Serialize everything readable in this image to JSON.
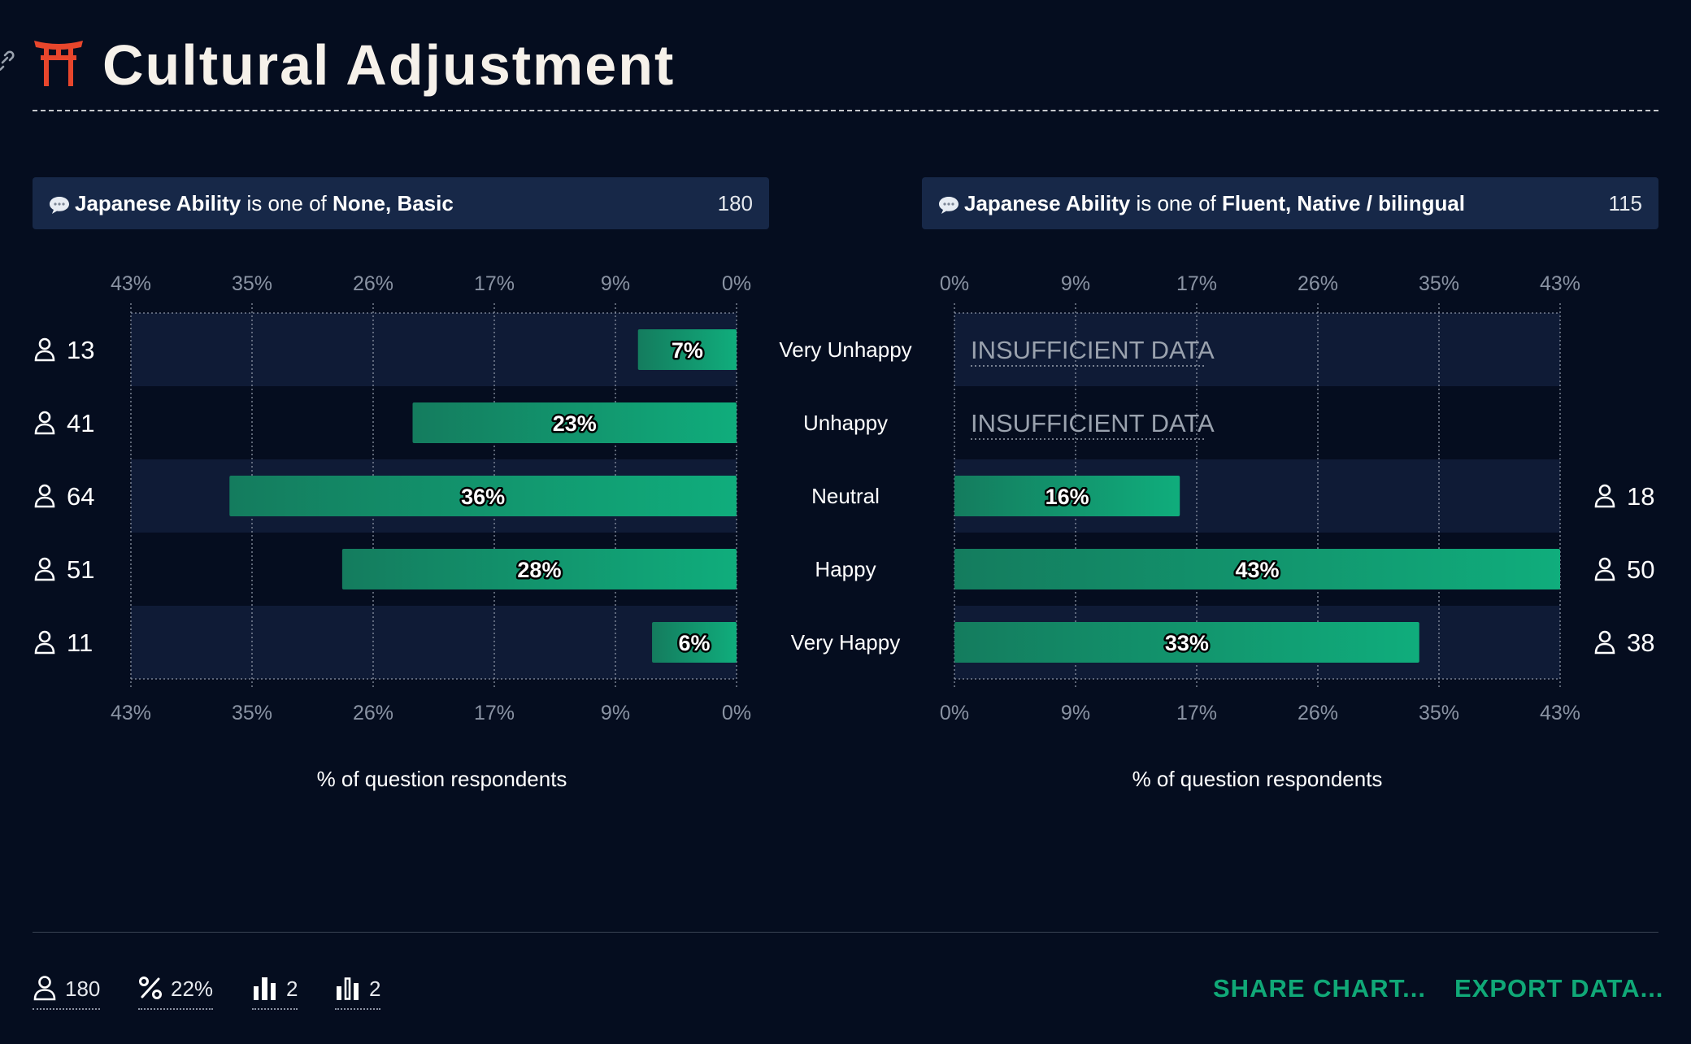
{
  "header": {
    "title": "Cultural Adjustment",
    "title_icon": "torii-gate-icon",
    "link_icon": "link-icon"
  },
  "panels": [
    {
      "filter_field": "Japanese Ability",
      "filter_op": "is one of",
      "filter_values": "None, Basic",
      "count": "180",
      "icon": "speech-bubble-icon"
    },
    {
      "filter_field": "Japanese Ability",
      "filter_op": "is one of",
      "filter_values": "Fluent, Native / bilingual",
      "count": "115",
      "icon": "speech-bubble-icon"
    }
  ],
  "chart_data": [
    {
      "type": "bar",
      "orientation": "horizontal",
      "direction": "right-to-left",
      "categories": [
        "Very Unhappy",
        "Unhappy",
        "Neutral",
        "Happy",
        "Very Happy"
      ],
      "values": [
        7,
        23,
        36,
        28,
        6
      ],
      "value_labels": [
        "7%",
        "23%",
        "36%",
        "28%",
        "6%"
      ],
      "respondents": [
        "13",
        "41",
        "64",
        "51",
        "11"
      ],
      "xlim": [
        0,
        43
      ],
      "ticks": [
        "43%",
        "35%",
        "26%",
        "17%",
        "9%",
        "0%"
      ],
      "xlabel": "% of question respondents",
      "grid": true
    },
    {
      "type": "bar",
      "orientation": "horizontal",
      "direction": "left-to-right",
      "categories": [
        "Very Unhappy",
        "Unhappy",
        "Neutral",
        "Happy",
        "Very Happy"
      ],
      "values": [
        null,
        null,
        16,
        43,
        33
      ],
      "value_labels": [
        "",
        "",
        "16%",
        "43%",
        "33%"
      ],
      "respondents": [
        "",
        "",
        "18",
        "50",
        "38"
      ],
      "insufficient_text": "INSUFFICIENT DATA",
      "xlim": [
        0,
        43
      ],
      "ticks": [
        "0%",
        "9%",
        "17%",
        "26%",
        "35%",
        "43%"
      ],
      "xlabel": "% of question respondents",
      "grid": true
    }
  ],
  "footer": {
    "stats": [
      {
        "icon": "person-icon",
        "value": "180"
      },
      {
        "icon": "percent-icon",
        "value": "22%"
      },
      {
        "icon": "bar-chart-icon",
        "value": "2"
      },
      {
        "icon": "bar-chart-outline-icon",
        "value": "2"
      }
    ],
    "share_label": "SHARE CHART...",
    "export_label": "EXPORT DATA..."
  },
  "colors": {
    "background": "#050d1f",
    "panel_header": "#172848",
    "row_band": "#0f1b36",
    "bar_start": "#147c5e",
    "bar_end": "#10ad7c",
    "accent": "#10a877"
  }
}
